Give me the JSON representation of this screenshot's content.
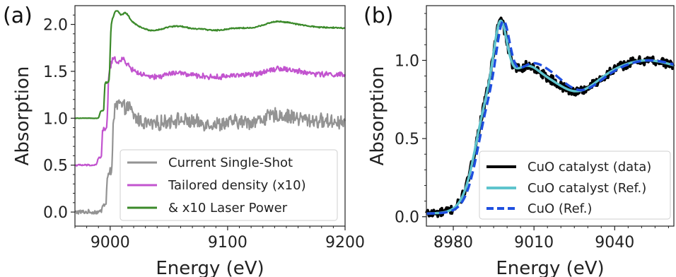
{
  "colors": {
    "gray": "#939393",
    "magenta": "#c254cf",
    "green": "#3b8a2a",
    "black": "#000000",
    "cyan": "#5ec4cd",
    "blue": "#1f4fe0"
  },
  "chart_data": [
    {
      "type": "line",
      "panel_label": "(a)",
      "xlabel": "Energy (eV)",
      "ylabel": "Absorption",
      "xlim": [
        8970,
        9200
      ],
      "ylim": [
        -0.15,
        2.2
      ],
      "xticks": [
        9000,
        9100,
        9200
      ],
      "xtick_labels": [
        "9000",
        "9100",
        "9200"
      ],
      "yticks": [
        0.0,
        0.5,
        1.0,
        1.5,
        2.0
      ],
      "ytick_labels": [
        "0.0",
        "0.5",
        "1.0",
        "1.5",
        "2.0"
      ],
      "grid": false,
      "legend_position": "lower-right",
      "series": [
        {
          "name": "Current Single-Shot",
          "color": "gray",
          "offset": 0.0,
          "noise": 0.07,
          "edge": 8997
        },
        {
          "name": "Tailored density (x10)",
          "color": "magenta",
          "offset": 0.5,
          "noise": 0.025,
          "edge": 8993
        },
        {
          "name": "& x10 Laser Power",
          "color": "green",
          "offset": 1.0,
          "noise": 0.006,
          "edge": 8995
        }
      ]
    },
    {
      "type": "line",
      "panel_label": "(b)",
      "xlabel": "Energy (eV)",
      "ylabel": "Absorption",
      "xlim": [
        8970,
        9062
      ],
      "ylim": [
        -0.06,
        1.35
      ],
      "xticks": [
        8980,
        9010,
        9040
      ],
      "xtick_labels": [
        "8980",
        "9010",
        "9040"
      ],
      "yticks": [
        0.0,
        0.5,
        1.0
      ],
      "ytick_labels": [
        "0.0",
        "0.5",
        "1.0"
      ],
      "grid": false,
      "legend_position": "lower-right",
      "series": [
        {
          "name": "CuO catalyst (data)",
          "color": "black",
          "style": "solid-noisy"
        },
        {
          "name": "CuO catalyst (Ref.)",
          "color": "cyan",
          "style": "solid"
        },
        {
          "name": "CuO (Ref.)",
          "color": "blue",
          "style": "dashed"
        }
      ]
    }
  ]
}
